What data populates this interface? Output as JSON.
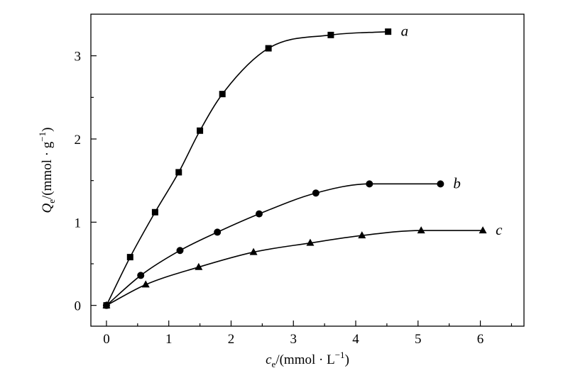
{
  "chart_data": {
    "type": "line",
    "xlabel": "c_e/(mmol · L^−1)",
    "ylabel": "Q_e/(mmol · g^−1)",
    "xlim": [
      -0.25,
      6.7
    ],
    "ylim": [
      -0.25,
      3.5
    ],
    "xticks": [
      "0",
      "1",
      "2",
      "3",
      "4",
      "5",
      "6"
    ],
    "yticks": [
      "0",
      "1",
      "2",
      "3"
    ],
    "grid": false,
    "legend": "inline labels at series ends",
    "series": [
      {
        "name": "a",
        "marker": "square",
        "x": [
          0.0,
          0.38,
          0.78,
          1.16,
          1.5,
          1.86,
          2.6,
          3.6,
          4.52
        ],
        "y": [
          0.0,
          0.58,
          1.12,
          1.6,
          2.1,
          2.54,
          3.09,
          3.25,
          3.29
        ]
      },
      {
        "name": "b",
        "marker": "circle",
        "x": [
          0.0,
          0.55,
          1.18,
          1.78,
          2.45,
          3.36,
          4.22,
          5.36
        ],
        "y": [
          0.0,
          0.36,
          0.66,
          0.88,
          1.1,
          1.35,
          1.46,
          1.46
        ]
      },
      {
        "name": "c",
        "marker": "triangle",
        "x": [
          0.0,
          0.63,
          1.48,
          2.36,
          3.27,
          4.1,
          5.05,
          6.04
        ],
        "y": [
          0.0,
          0.25,
          0.46,
          0.64,
          0.75,
          0.84,
          0.9,
          0.9
        ]
      }
    ]
  }
}
